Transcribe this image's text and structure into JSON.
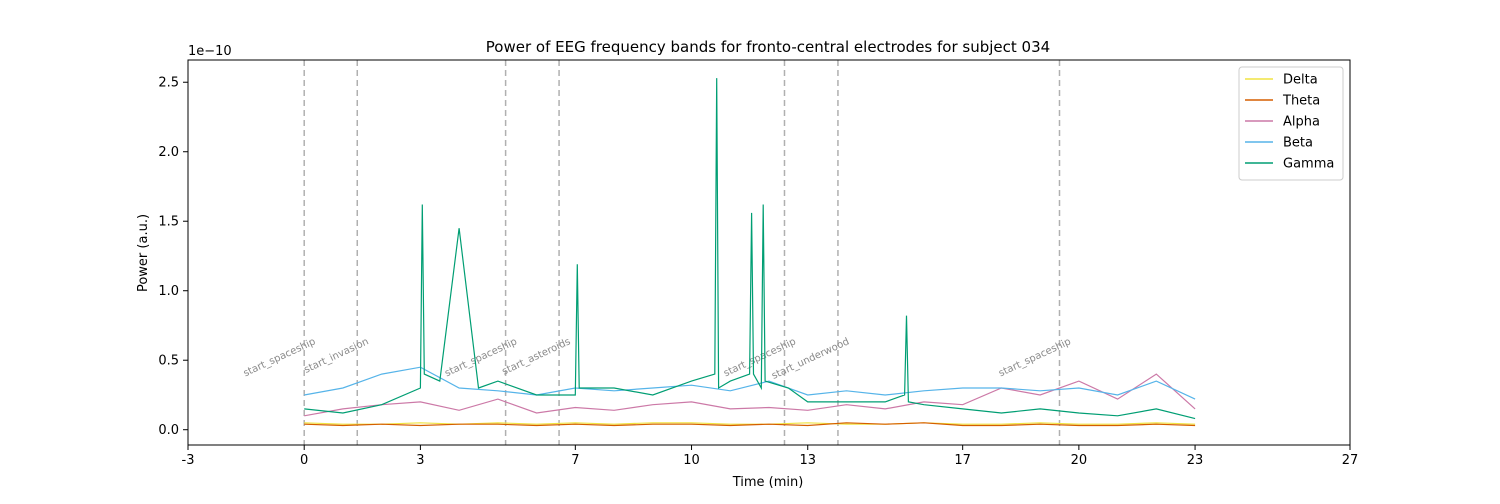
{
  "chart_data": {
    "type": "line",
    "title": "Power of EEG frequency bands for fronto-central electrodes for subject 034",
    "xlabel": "Time (min)",
    "ylabel": "Power (a.u.)",
    "y_offset_label": "1e−10",
    "xlim": [
      -3,
      27
    ],
    "ylim": [
      -0.11,
      2.66
    ],
    "x_ticks": [
      -3,
      0,
      3,
      7,
      10,
      13,
      17,
      20,
      23,
      27
    ],
    "x_tick_labels": [
      "-3",
      "0",
      "3",
      "7",
      "10",
      "13",
      "17",
      "20",
      "23",
      "27"
    ],
    "y_ticks": [
      0.0,
      0.5,
      1.0,
      1.5,
      2.0,
      2.5
    ],
    "y_tick_labels": [
      "0.0",
      "0.5",
      "1.0",
      "1.5",
      "2.0",
      "2.5"
    ],
    "legend": {
      "position": "top-right"
    },
    "grid": false,
    "events": [
      {
        "x": 0.0,
        "label": "start_spaceship"
      },
      {
        "x": 1.37,
        "label": "start_invasion"
      },
      {
        "x": 5.2,
        "label": "start_spaceship"
      },
      {
        "x": 6.58,
        "label": "start_asteroids"
      },
      {
        "x": 12.4,
        "label": "start_spaceship"
      },
      {
        "x": 13.78,
        "label": "start_underwood"
      },
      {
        "x": 19.5,
        "label": "start_spaceship"
      }
    ],
    "series": [
      {
        "name": "Delta",
        "color": "#f0e442",
        "x": [
          0,
          1,
          2,
          3,
          4,
          5,
          6,
          7,
          8,
          9,
          10,
          11,
          12,
          13,
          14,
          15,
          16,
          17,
          18,
          19,
          20,
          21,
          22,
          23
        ],
        "y": [
          0.05,
          0.04,
          0.04,
          0.05,
          0.04,
          0.05,
          0.04,
          0.05,
          0.04,
          0.05,
          0.05,
          0.04,
          0.04,
          0.05,
          0.04,
          0.04,
          0.05,
          0.04,
          0.04,
          0.05,
          0.04,
          0.04,
          0.05,
          0.04
        ]
      },
      {
        "name": "Theta",
        "color": "#d55e00",
        "x": [
          0,
          1,
          2,
          3,
          4,
          5,
          6,
          7,
          8,
          9,
          10,
          11,
          12,
          13,
          14,
          15,
          16,
          17,
          18,
          19,
          20,
          21,
          22,
          23
        ],
        "y": [
          0.04,
          0.03,
          0.04,
          0.03,
          0.04,
          0.04,
          0.03,
          0.04,
          0.03,
          0.04,
          0.04,
          0.03,
          0.04,
          0.03,
          0.05,
          0.04,
          0.05,
          0.03,
          0.03,
          0.04,
          0.03,
          0.03,
          0.04,
          0.03
        ]
      },
      {
        "name": "Alpha",
        "color": "#cc79a7",
        "x": [
          0,
          1,
          2,
          3,
          4,
          5,
          6,
          7,
          8,
          9,
          10,
          11,
          12,
          13,
          14,
          15,
          16,
          17,
          18,
          19,
          20,
          21,
          22,
          23
        ],
        "y": [
          0.1,
          0.15,
          0.18,
          0.2,
          0.14,
          0.22,
          0.12,
          0.16,
          0.14,
          0.18,
          0.2,
          0.15,
          0.16,
          0.14,
          0.18,
          0.15,
          0.2,
          0.18,
          0.3,
          0.25,
          0.35,
          0.22,
          0.4,
          0.15
        ]
      },
      {
        "name": "Beta",
        "color": "#56b4e9",
        "x": [
          0,
          1,
          2,
          3,
          4,
          5,
          6,
          7,
          8,
          9,
          10,
          11,
          12,
          13,
          14,
          15,
          16,
          17,
          18,
          19,
          20,
          21,
          22,
          23
        ],
        "y": [
          0.25,
          0.3,
          0.4,
          0.45,
          0.3,
          0.28,
          0.25,
          0.3,
          0.28,
          0.3,
          0.32,
          0.28,
          0.35,
          0.25,
          0.28,
          0.25,
          0.28,
          0.3,
          0.3,
          0.28,
          0.3,
          0.25,
          0.35,
          0.22
        ]
      },
      {
        "name": "Gamma",
        "color": "#009e73",
        "x": [
          0,
          1,
          2,
          3,
          3.05,
          3.1,
          3.5,
          4.0,
          4.5,
          5.0,
          6.0,
          7.0,
          7.05,
          7.1,
          8.0,
          9.0,
          10.0,
          10.6,
          10.65,
          10.7,
          11.0,
          11.5,
          11.55,
          11.6,
          11.8,
          11.85,
          11.9,
          12.5,
          13.0,
          14.0,
          15.0,
          15.5,
          15.55,
          15.6,
          16.0,
          17.0,
          18.0,
          19.0,
          20.0,
          21.0,
          22.0,
          23.0
        ],
        "y": [
          0.15,
          0.12,
          0.18,
          0.3,
          1.62,
          0.4,
          0.35,
          1.45,
          0.3,
          0.35,
          0.25,
          0.25,
          1.19,
          0.3,
          0.3,
          0.25,
          0.35,
          0.4,
          2.53,
          0.3,
          0.35,
          0.4,
          1.56,
          0.4,
          0.3,
          1.62,
          0.35,
          0.3,
          0.2,
          0.2,
          0.2,
          0.25,
          0.82,
          0.2,
          0.18,
          0.15,
          0.12,
          0.15,
          0.12,
          0.1,
          0.15,
          0.08
        ]
      }
    ]
  }
}
